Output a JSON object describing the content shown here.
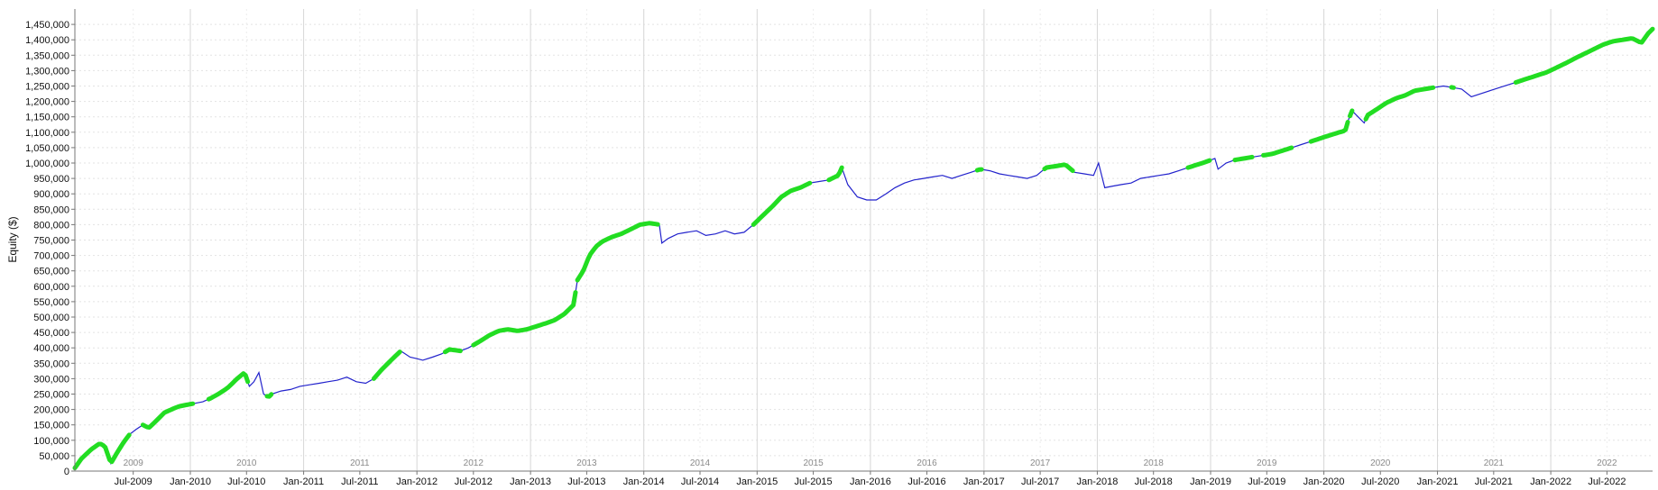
{
  "chart_data": {
    "type": "line",
    "title": "",
    "xlabel": "",
    "ylabel": "Equity ($)",
    "ylim": [
      0,
      1500000
    ],
    "xlim": [
      "2008-12-25",
      "2022-11-25"
    ],
    "grid": true,
    "y_ticks": [
      0,
      50000,
      100000,
      150000,
      200000,
      250000,
      300000,
      350000,
      400000,
      450000,
      500000,
      550000,
      600000,
      650000,
      700000,
      750000,
      800000,
      850000,
      900000,
      950000,
      1000000,
      1050000,
      1100000,
      1150000,
      1200000,
      1250000,
      1300000,
      1350000,
      1400000,
      1450000
    ],
    "y_tick_labels": [
      "0",
      "50,000",
      "100,000",
      "150,000",
      "200,000",
      "250,000",
      "300,000",
      "350,000",
      "400,000",
      "450,000",
      "500,000",
      "550,000",
      "600,000",
      "650,000",
      "700,000",
      "750,000",
      "800,000",
      "850,000",
      "900,000",
      "950,000",
      "1,000,000",
      "1,050,000",
      "1,100,000",
      "1,150,000",
      "1,200,000",
      "1,250,000",
      "1,300,000",
      "1,350,000",
      "1,400,000",
      "1,450,000"
    ],
    "x_ticks": [
      {
        "date": "2009-07-01",
        "label": "Jul-2009"
      },
      {
        "date": "2010-01-01",
        "label": "Jan-2010"
      },
      {
        "date": "2010-07-01",
        "label": "Jul-2010"
      },
      {
        "date": "2011-01-01",
        "label": "Jan-2011"
      },
      {
        "date": "2011-07-01",
        "label": "Jul-2011"
      },
      {
        "date": "2012-01-01",
        "label": "Jan-2012"
      },
      {
        "date": "2012-07-01",
        "label": "Jul-2012"
      },
      {
        "date": "2013-01-01",
        "label": "Jan-2013"
      },
      {
        "date": "2013-07-01",
        "label": "Jul-2013"
      },
      {
        "date": "2014-01-01",
        "label": "Jan-2014"
      },
      {
        "date": "2014-07-01",
        "label": "Jul-2014"
      },
      {
        "date": "2015-01-01",
        "label": "Jan-2015"
      },
      {
        "date": "2015-07-01",
        "label": "Jul-2015"
      },
      {
        "date": "2016-01-01",
        "label": "Jan-2016"
      },
      {
        "date": "2016-07-01",
        "label": "Jul-2016"
      },
      {
        "date": "2017-01-01",
        "label": "Jan-2017"
      },
      {
        "date": "2017-07-01",
        "label": "Jul-2017"
      },
      {
        "date": "2018-01-01",
        "label": "Jan-2018"
      },
      {
        "date": "2018-07-01",
        "label": "Jul-2018"
      },
      {
        "date": "2019-01-01",
        "label": "Jan-2019"
      },
      {
        "date": "2019-07-01",
        "label": "Jul-2019"
      },
      {
        "date": "2020-01-01",
        "label": "Jan-2020"
      },
      {
        "date": "2020-07-01",
        "label": "Jul-2020"
      },
      {
        "date": "2021-01-01",
        "label": "Jan-2021"
      },
      {
        "date": "2021-07-01",
        "label": "Jul-2021"
      },
      {
        "date": "2022-01-01",
        "label": "Jan-2022"
      },
      {
        "date": "2022-07-01",
        "label": "Jul-2022"
      }
    ],
    "year_labels": [
      {
        "date": "2009-07-01",
        "label": "2009"
      },
      {
        "date": "2010-07-01",
        "label": "2010"
      },
      {
        "date": "2011-07-01",
        "label": "2011"
      },
      {
        "date": "2012-07-01",
        "label": "2012"
      },
      {
        "date": "2013-07-01",
        "label": "2013"
      },
      {
        "date": "2014-07-01",
        "label": "2014"
      },
      {
        "date": "2015-07-01",
        "label": "2015"
      },
      {
        "date": "2016-07-01",
        "label": "2016"
      },
      {
        "date": "2017-07-01",
        "label": "2017"
      },
      {
        "date": "2018-07-01",
        "label": "2018"
      },
      {
        "date": "2019-07-01",
        "label": "2019"
      },
      {
        "date": "2020-07-01",
        "label": "2020"
      },
      {
        "date": "2021-07-01",
        "label": "2021"
      },
      {
        "date": "2022-07-01",
        "label": "2022"
      }
    ],
    "series": [
      {
        "color": "#2222cc",
        "highlight_color": "#22dd22",
        "x": [
          "2008-12-25",
          "2009-01-15",
          "2009-02-15",
          "2009-03-15",
          "2009-04-01",
          "2009-04-20",
          "2009-05-10",
          "2009-06-01",
          "2009-06-20",
          "2009-07-10",
          "2009-08-01",
          "2009-08-20",
          "2009-09-15",
          "2009-10-10",
          "2009-11-01",
          "2009-11-25",
          "2009-12-20",
          "2010-01-15",
          "2010-02-10",
          "2010-03-05",
          "2010-04-01",
          "2010-05-01",
          "2010-06-01",
          "2010-06-25",
          "2010-07-10",
          "2010-07-25",
          "2010-08-10",
          "2010-08-25",
          "2010-09-10",
          "2010-09-20",
          "2010-10-20",
          "2010-11-20",
          "2010-12-20",
          "2011-01-20",
          "2011-02-20",
          "2011-03-20",
          "2011-04-20",
          "2011-05-20",
          "2011-06-20",
          "2011-07-20",
          "2011-08-15",
          "2011-09-10",
          "2011-10-10",
          "2011-11-10",
          "2011-12-10",
          "2012-01-01",
          "2012-01-20",
          "2012-02-20",
          "2012-03-20",
          "2012-04-15",
          "2012-05-20",
          "2012-06-15",
          "2012-07-20",
          "2012-08-20",
          "2012-09-20",
          "2012-10-20",
          "2012-11-20",
          "2012-12-20",
          "2013-01-20",
          "2013-02-20",
          "2013-03-20",
          "2013-04-20",
          "2013-05-20",
          "2013-06-01",
          "2013-06-20",
          "2013-07-10",
          "2013-08-01",
          "2013-08-20",
          "2013-09-20",
          "2013-10-20",
          "2013-11-20",
          "2013-12-20",
          "2014-01-20",
          "2014-02-20",
          "2014-02-28",
          "2014-03-20",
          "2014-04-20",
          "2014-05-20",
          "2014-06-20",
          "2014-07-20",
          "2014-08-20",
          "2014-09-20",
          "2014-10-20",
          "2014-11-20",
          "2014-12-20",
          "2015-01-20",
          "2015-02-20",
          "2015-03-20",
          "2015-04-20",
          "2015-05-20",
          "2015-06-20",
          "2015-07-20",
          "2015-08-20",
          "2015-09-20",
          "2015-10-01",
          "2015-10-20",
          "2015-11-20",
          "2015-12-20",
          "2016-01-20",
          "2016-02-20",
          "2016-03-20",
          "2016-04-20",
          "2016-05-20",
          "2016-06-20",
          "2016-07-20",
          "2016-08-20",
          "2016-09-20",
          "2016-10-20",
          "2016-11-20",
          "2016-12-20",
          "2017-01-20",
          "2017-02-20",
          "2017-03-20",
          "2017-04-20",
          "2017-05-20",
          "2017-06-20",
          "2017-07-20",
          "2017-08-20",
          "2017-09-20",
          "2017-10-20",
          "2017-11-20",
          "2017-12-20",
          "2018-01-05",
          "2018-01-25",
          "2018-02-20",
          "2018-03-20",
          "2018-04-20",
          "2018-05-20",
          "2018-06-20",
          "2018-07-20",
          "2018-08-20",
          "2018-09-20",
          "2018-10-20",
          "2018-11-20",
          "2018-12-20",
          "2019-01-15",
          "2019-01-25",
          "2019-02-20",
          "2019-03-20",
          "2019-04-20",
          "2019-05-20",
          "2019-06-20",
          "2019-07-20",
          "2019-08-20",
          "2019-09-20",
          "2019-10-20",
          "2019-11-20",
          "2019-12-20",
          "2020-01-20",
          "2020-02-20",
          "2020-03-10",
          "2020-03-20",
          "2020-04-01",
          "2020-04-20",
          "2020-05-10",
          "2020-05-20",
          "2020-06-20",
          "2020-07-20",
          "2020-08-20",
          "2020-09-20",
          "2020-10-20",
          "2020-11-20",
          "2020-12-20",
          "2021-01-20",
          "2021-02-20",
          "2021-03-20",
          "2021-04-20",
          "2021-05-20",
          "2021-06-20",
          "2021-07-20",
          "2021-08-20",
          "2021-09-20",
          "2021-10-20",
          "2021-11-20",
          "2021-12-20",
          "2022-01-20",
          "2022-02-20",
          "2022-03-20",
          "2022-04-20",
          "2022-05-20",
          "2022-06-20",
          "2022-07-20",
          "2022-08-20",
          "2022-09-20",
          "2022-10-20",
          "2022-11-10",
          "2022-11-25"
        ],
        "y": [
          10000,
          40000,
          70000,
          90000,
          80000,
          25000,
          60000,
          95000,
          120000,
          135000,
          150000,
          140000,
          165000,
          190000,
          200000,
          210000,
          215000,
          220000,
          225000,
          235000,
          250000,
          270000,
          300000,
          320000,
          275000,
          290000,
          320000,
          250000,
          240000,
          250000,
          260000,
          265000,
          275000,
          280000,
          285000,
          290000,
          295000,
          305000,
          290000,
          285000,
          300000,
          330000,
          360000,
          390000,
          370000,
          365000,
          360000,
          370000,
          380000,
          395000,
          390000,
          400000,
          420000,
          440000,
          455000,
          460000,
          455000,
          460000,
          470000,
          480000,
          490000,
          510000,
          540000,
          620000,
          650000,
          700000,
          730000,
          745000,
          760000,
          770000,
          785000,
          800000,
          805000,
          800000,
          740000,
          755000,
          770000,
          775000,
          780000,
          765000,
          770000,
          780000,
          770000,
          775000,
          800000,
          830000,
          860000,
          890000,
          910000,
          920000,
          935000,
          940000,
          945000,
          960000,
          985000,
          930000,
          890000,
          880000,
          880000,
          900000,
          920000,
          935000,
          945000,
          950000,
          955000,
          960000,
          950000,
          960000,
          970000,
          980000,
          975000,
          965000,
          960000,
          955000,
          950000,
          960000,
          985000,
          990000,
          995000,
          970000,
          965000,
          960000,
          1000000,
          920000,
          925000,
          930000,
          935000,
          950000,
          955000,
          960000,
          965000,
          975000,
          985000,
          995000,
          1005000,
          1015000,
          980000,
          1000000,
          1010000,
          1015000,
          1020000,
          1025000,
          1030000,
          1040000,
          1050000,
          1060000,
          1070000,
          1080000,
          1090000,
          1100000,
          1105000,
          1140000,
          1170000,
          1150000,
          1130000,
          1155000,
          1175000,
          1195000,
          1210000,
          1220000,
          1235000,
          1240000,
          1245000,
          1250000,
          1245000,
          1240000,
          1215000,
          1225000,
          1235000,
          1245000,
          1255000,
          1265000,
          1275000,
          1285000,
          1295000,
          1310000,
          1325000,
          1340000,
          1355000,
          1370000,
          1385000,
          1395000,
          1400000,
          1405000,
          1390000,
          1420000,
          1435000
        ],
        "highlight_ranges": [
          [
            "2008-12-25",
            "2009-06-20"
          ],
          [
            "2009-08-01",
            "2010-01-15"
          ],
          [
            "2010-03-01",
            "2010-07-10"
          ],
          [
            "2010-09-05",
            "2010-09-20"
          ],
          [
            "2011-08-15",
            "2011-11-10"
          ],
          [
            "2012-04-01",
            "2012-05-20"
          ],
          [
            "2012-07-01",
            "2013-06-01"
          ],
          [
            "2013-06-01",
            "2014-02-20"
          ],
          [
            "2014-12-20",
            "2015-06-20"
          ],
          [
            "2015-08-20",
            "2015-10-01"
          ],
          [
            "2016-12-10",
            "2016-12-25"
          ],
          [
            "2017-07-15",
            "2017-10-20"
          ],
          [
            "2018-10-20",
            "2018-12-31"
          ],
          [
            "2019-03-20",
            "2019-05-20"
          ],
          [
            "2019-06-20",
            "2019-09-20"
          ],
          [
            "2019-11-20",
            "2020-03-20"
          ],
          [
            "2020-03-25",
            "2020-04-05"
          ],
          [
            "2020-05-15",
            "2020-12-20"
          ],
          [
            "2021-02-15",
            "2021-02-25"
          ],
          [
            "2021-09-10",
            "2022-11-25"
          ]
        ]
      }
    ]
  }
}
